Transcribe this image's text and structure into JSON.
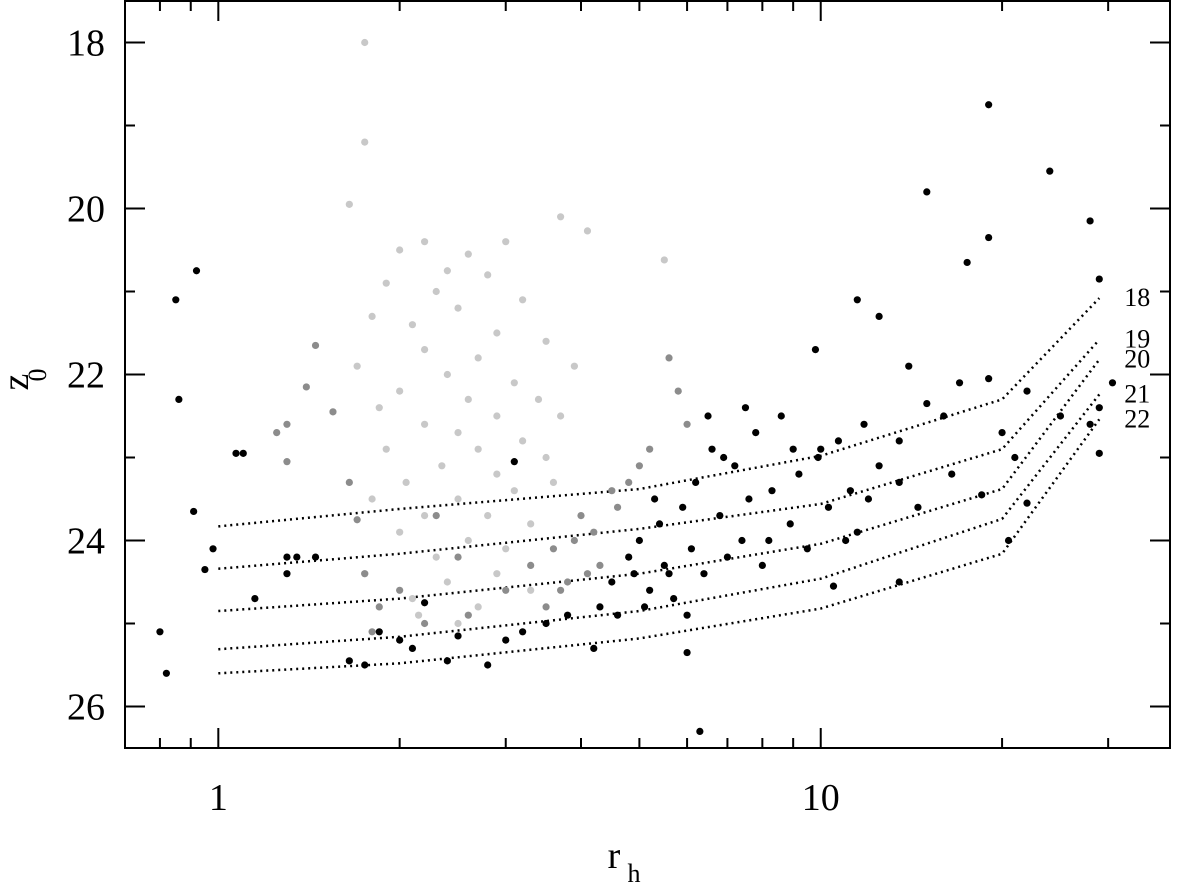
{
  "chart_data": {
    "type": "scatter",
    "xscale": "log",
    "xlim": [
      0.7,
      38
    ],
    "ylim": [
      26.5,
      17.5
    ],
    "xticks": [
      1,
      10
    ],
    "xminorticks": [
      0.8,
      0.9,
      2,
      3,
      4,
      5,
      6,
      7,
      8,
      9,
      20,
      30
    ],
    "yticks": [
      18,
      20,
      22,
      24,
      26
    ],
    "yminorticks": [
      19,
      21,
      23,
      25
    ],
    "x_label": "r",
    "x_label_sub": "h",
    "y_label": "z",
    "y_label_sub": "0",
    "grid": false,
    "series": [
      {
        "color": "#c8c8c8",
        "x": [
          1.75,
          1.75,
          1.65,
          3.7,
          4.1,
          2.2,
          3.0,
          2.0,
          2.6,
          5.5,
          2.4,
          2.8,
          1.9,
          2.3,
          3.2,
          2.5,
          1.8,
          2.1,
          2.9,
          3.5,
          2.2,
          2.7,
          1.7,
          3.9,
          2.4,
          3.1,
          2.0,
          2.6,
          3.4,
          1.85,
          2.9,
          3.7,
          2.2,
          2.5,
          3.2,
          1.9,
          2.7,
          3.5,
          2.35,
          2.9,
          2.05,
          3.1,
          2.5,
          1.8,
          3.6,
          2.2,
          2.8,
          2.0,
          3.3,
          2.6,
          2.3,
          3.0,
          1.75,
          2.4,
          2.9,
          2.1,
          2.7,
          3.3,
          2.5,
          2.15
        ],
        "values": [
          18.0,
          19.2,
          19.95,
          20.1,
          20.27,
          20.4,
          20.4,
          20.5,
          20.55,
          20.62,
          20.75,
          20.8,
          20.9,
          21.0,
          21.1,
          21.2,
          21.3,
          21.4,
          21.5,
          21.6,
          21.7,
          21.8,
          21.9,
          21.9,
          22.0,
          22.1,
          22.2,
          22.3,
          22.3,
          22.4,
          22.5,
          22.5,
          22.6,
          22.7,
          22.8,
          22.9,
          22.9,
          23.0,
          23.1,
          23.2,
          23.3,
          23.4,
          23.5,
          23.5,
          23.3,
          23.7,
          23.7,
          23.9,
          23.8,
          24.0,
          24.2,
          24.1,
          24.4,
          24.5,
          24.4,
          24.7,
          24.8,
          24.6,
          25.0,
          24.9
        ]
      },
      {
        "color": "#8c8c8c",
        "x": [
          1.45,
          1.3,
          1.4,
          1.25,
          1.3,
          1.55,
          1.65,
          1.7,
          1.75,
          1.8,
          2.0,
          2.2,
          2.6,
          3.0,
          3.3,
          3.6,
          3.9,
          4.2,
          4.5,
          4.0,
          4.8,
          5.2,
          5.6,
          5.8,
          6.0,
          3.8,
          3.5,
          4.3,
          4.6,
          5.0,
          3.7,
          4.1,
          2.3,
          1.85,
          2.5
        ],
        "values": [
          21.65,
          22.6,
          22.15,
          22.7,
          23.05,
          22.45,
          23.3,
          23.75,
          24.4,
          25.1,
          24.6,
          25.0,
          24.9,
          24.6,
          24.3,
          24.1,
          24.0,
          23.9,
          23.4,
          23.7,
          23.3,
          22.9,
          21.8,
          22.2,
          22.6,
          24.5,
          24.8,
          24.3,
          23.6,
          23.1,
          24.6,
          24.4,
          23.7,
          24.8,
          24.2
        ]
      },
      {
        "color": "#000000",
        "x": [
          0.85,
          0.92,
          0.86,
          0.91,
          0.95,
          0.98,
          0.8,
          0.82,
          1.07,
          1.1,
          1.15,
          1.3,
          1.3,
          1.35,
          1.45,
          1.65,
          1.75,
          1.85,
          2.0,
          2.1,
          2.2,
          2.4,
          2.5,
          2.8,
          3.0,
          3.2,
          3.5,
          3.8,
          4.2,
          3.1,
          6.0,
          6.3,
          15.0,
          19.0,
          24.0,
          28.0,
          19.0,
          17.5,
          29.0,
          11.5,
          12.5,
          9.8,
          14,
          17,
          19,
          22,
          30.5,
          29,
          15,
          16,
          20,
          25,
          28,
          13.5,
          13.5,
          14.5,
          16.5,
          18.5,
          21,
          22,
          20.5,
          13.5,
          10.5,
          11.5,
          29,
          4.5,
          4.8,
          5.0,
          5.2,
          5.4,
          5.5,
          5.7,
          5.9,
          6.1,
          6.2,
          6.4,
          6.6,
          6.8,
          7.0,
          7.2,
          7.4,
          7.6,
          7.8,
          8.0,
          8.3,
          8.6,
          8.9,
          9.2,
          9.5,
          9.9,
          10.3,
          10.7,
          11.2,
          11.8,
          12.5,
          4.3,
          4.6,
          5.1,
          5.6,
          6.0,
          6.5,
          7.5,
          6.9,
          5.3,
          4.9,
          8.2,
          9.0,
          10.0,
          11.0,
          12.0
        ],
        "values": [
          21.1,
          20.75,
          22.3,
          23.65,
          24.35,
          24.1,
          25.1,
          25.6,
          22.95,
          22.95,
          24.7,
          24.2,
          24.4,
          24.2,
          24.2,
          25.45,
          25.5,
          25.1,
          25.2,
          25.3,
          24.75,
          25.45,
          25.15,
          25.5,
          25.2,
          25.1,
          25.0,
          24.9,
          25.3,
          23.05,
          25.35,
          26.3,
          19.8,
          18.75,
          19.55,
          20.15,
          20.35,
          20.65,
          20.85,
          21.1,
          21.3,
          21.7,
          21.9,
          22.1,
          22.05,
          22.2,
          22.1,
          22.4,
          22.35,
          22.5,
          22.7,
          22.5,
          22.6,
          22.8,
          23.3,
          23.6,
          23.2,
          23.45,
          23.0,
          23.55,
          24.0,
          24.5,
          24.55,
          23.9,
          22.95,
          24.5,
          24.2,
          24.0,
          24.6,
          23.8,
          24.3,
          24.7,
          23.6,
          24.1,
          23.3,
          24.4,
          22.9,
          23.7,
          24.2,
          23.1,
          24.0,
          23.5,
          22.7,
          24.3,
          23.4,
          22.5,
          23.8,
          23.2,
          24.1,
          23.0,
          23.6,
          22.8,
          23.4,
          22.6,
          23.1,
          24.8,
          24.9,
          24.8,
          24.4,
          24.9,
          22.5,
          22.4,
          23.0,
          23.5,
          24.4,
          24.0,
          22.9,
          22.9,
          24.0,
          23.5
        ]
      }
    ],
    "curves": [
      {
        "name": "18",
        "x": [
          1,
          2,
          5,
          10,
          20,
          29
        ],
        "values": [
          23.83,
          23.62,
          23.38,
          22.98,
          22.3,
          21.08
        ]
      },
      {
        "name": "19",
        "x": [
          1,
          2,
          5,
          10,
          20,
          29
        ],
        "values": [
          24.34,
          24.16,
          23.86,
          23.56,
          22.9,
          21.58
        ]
      },
      {
        "name": "20",
        "x": [
          1,
          2,
          5,
          10,
          20,
          29
        ],
        "values": [
          24.85,
          24.7,
          24.4,
          24.04,
          23.38,
          21.82
        ]
      },
      {
        "name": "21",
        "x": [
          1,
          2,
          5,
          10,
          20,
          29
        ],
        "values": [
          25.31,
          25.16,
          24.85,
          24.46,
          23.74,
          22.24
        ]
      },
      {
        "name": "22",
        "x": [
          1,
          2,
          5,
          10,
          20,
          29
        ],
        "values": [
          25.6,
          25.48,
          25.18,
          24.82,
          24.16,
          22.54
        ]
      }
    ]
  }
}
